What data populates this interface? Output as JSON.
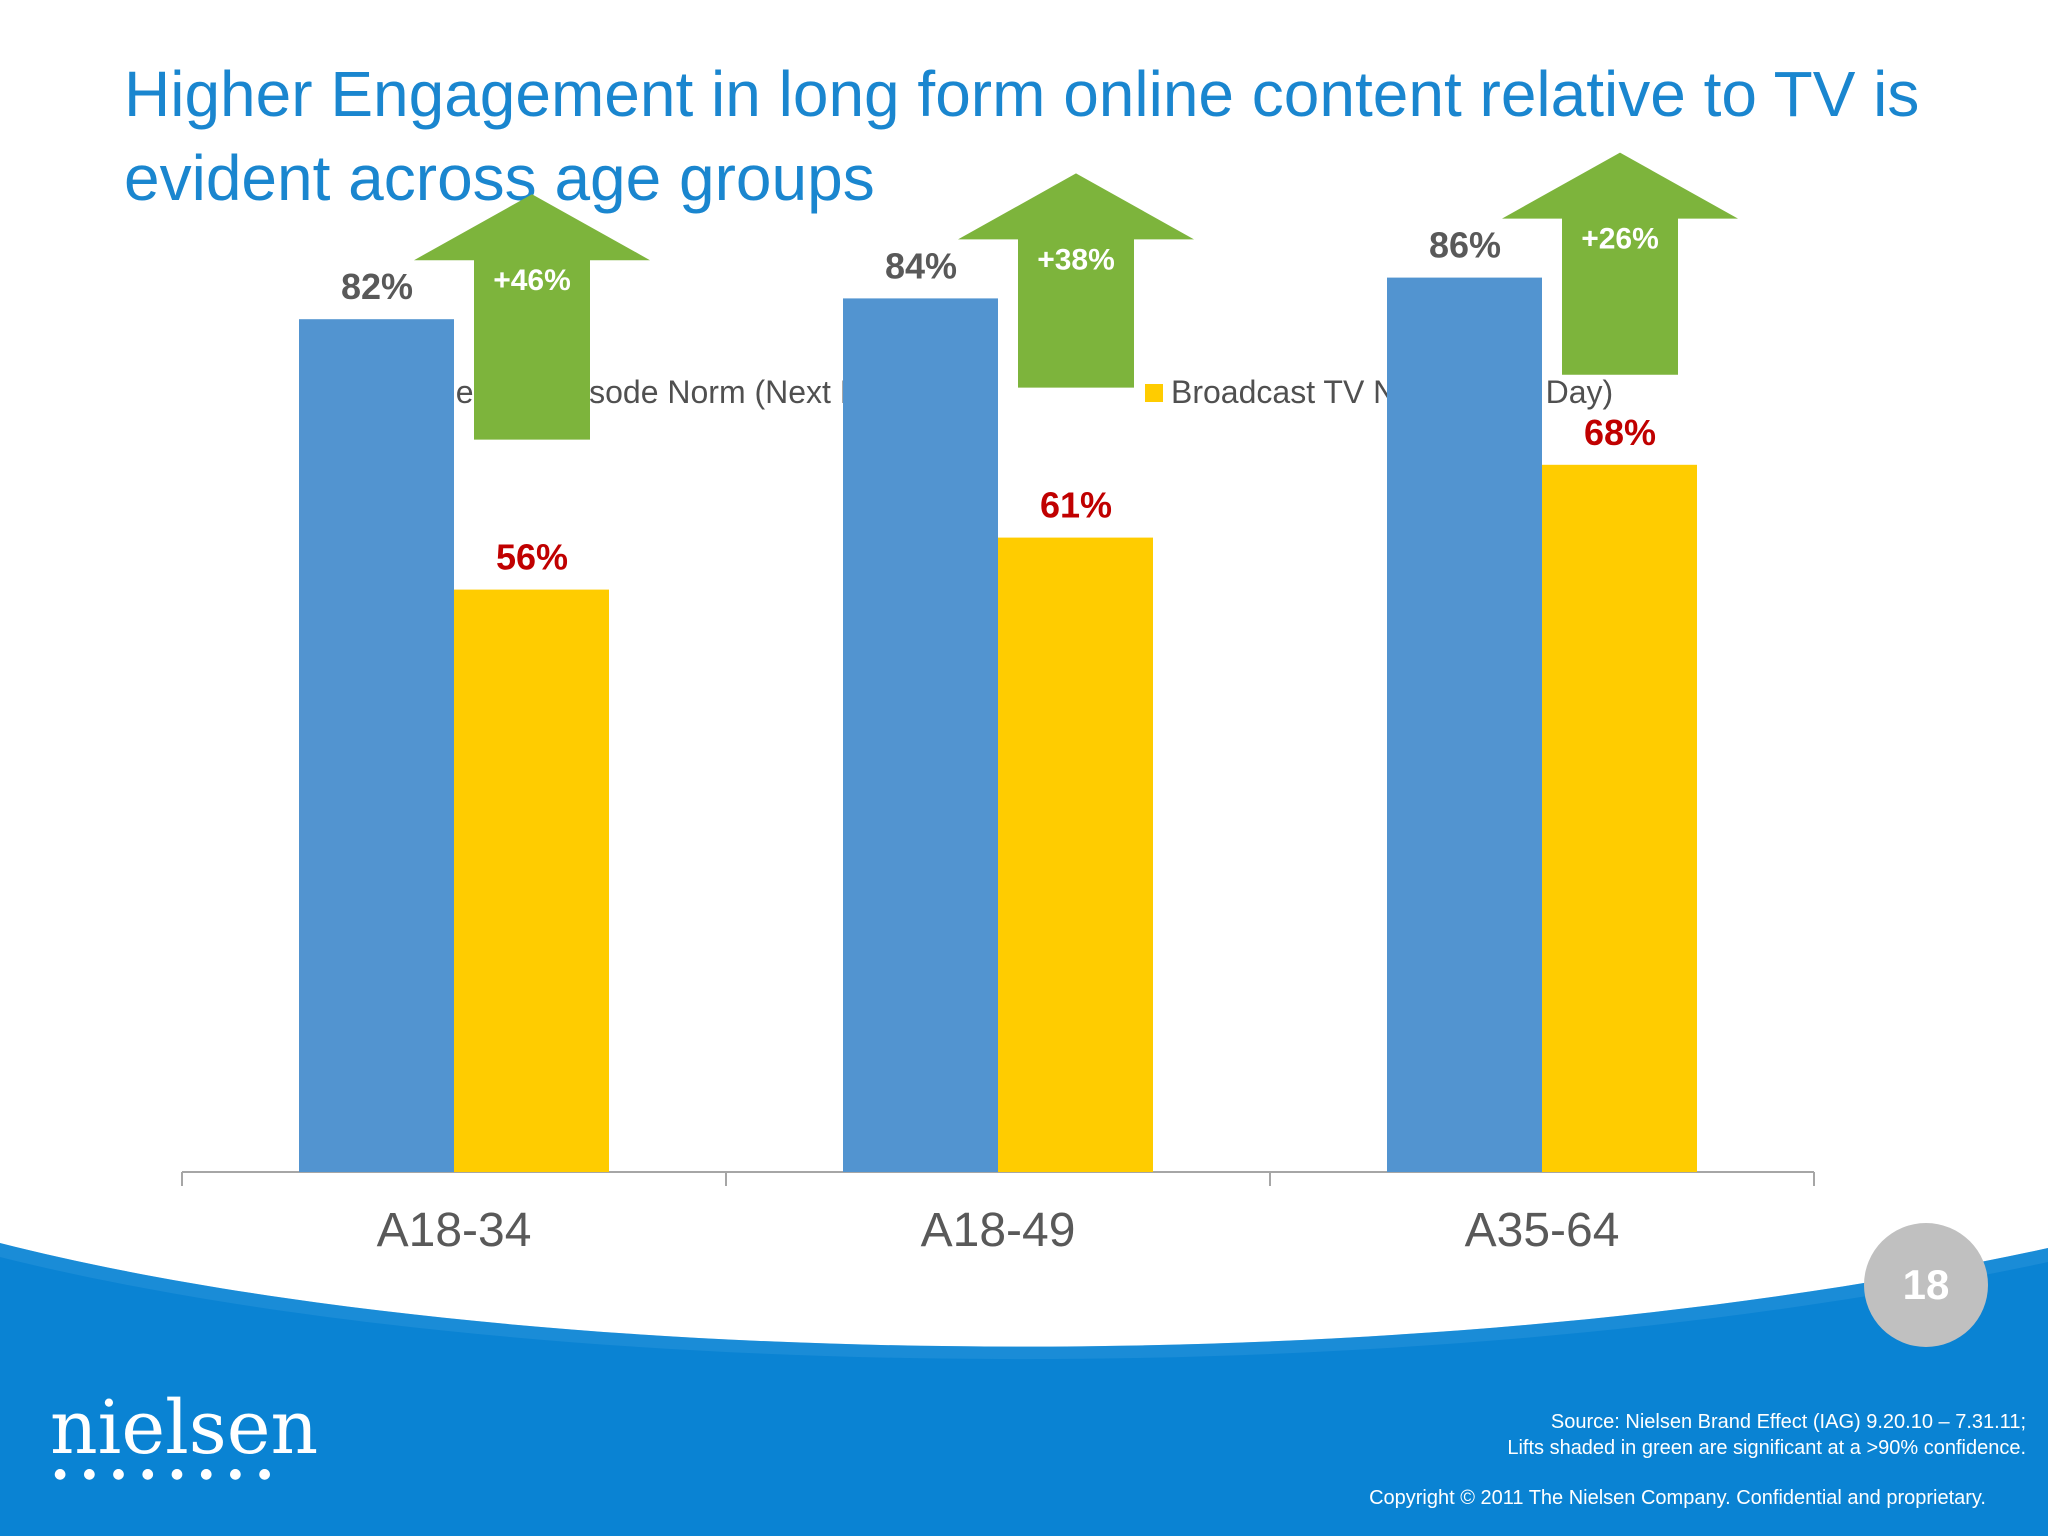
{
  "slide": {
    "title": "Higher Engagement in long form online content relative to TV is evident across age groups",
    "page_number": "18",
    "source_line1": "Source: Nielsen Brand Effect (IAG) 9.20.10 – 7.31.11;",
    "source_line2": "Lifts shaded in  green are significant at a >90% confidence.",
    "copyright": "Copyright © 2011 The Nielsen Company. Confidential and proprietary.",
    "logo_text": "nielsen",
    "logo_icon": "dots-row-icon"
  },
  "colors": {
    "title": "#1a86cf",
    "online": "#5294d0",
    "broadcast": "#ffcc00",
    "lift": "#7db43c",
    "broadcast_label": "#c00000",
    "online_label": "#595959",
    "footer_blue": "#0a83d3"
  },
  "chart_data": {
    "type": "bar",
    "categories": [
      "A18-34",
      "A18-49",
      "A35-64"
    ],
    "series": [
      {
        "name": "Online Full Episode Norm (Next Day)",
        "values": [
          82,
          84,
          86
        ],
        "labels": [
          "82%",
          "84%",
          "86%"
        ]
      },
      {
        "name": "Broadcast TV Norm (Next Day)",
        "values": [
          56,
          61,
          68
        ],
        "labels": [
          "56%",
          "61%",
          "68%"
        ]
      }
    ],
    "lifts": [
      "+46%",
      "+38%",
      "+26%"
    ],
    "ylim": [
      0,
      100
    ],
    "grid": false,
    "legend_position": "top"
  }
}
